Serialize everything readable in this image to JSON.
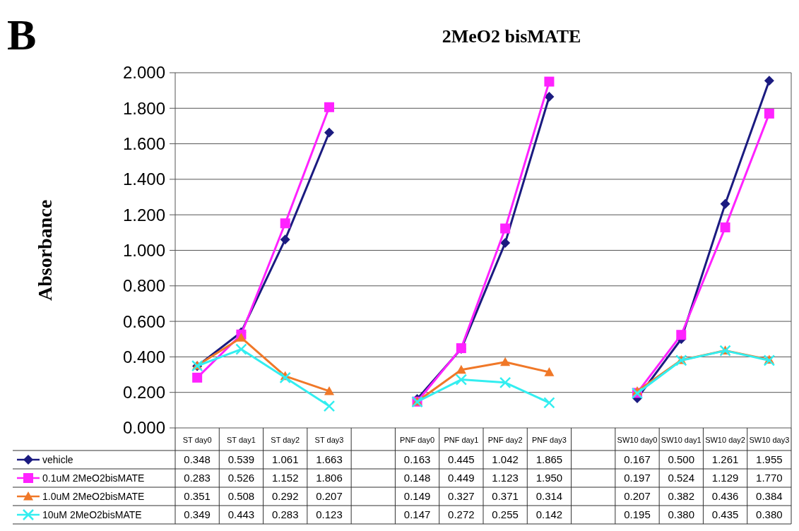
{
  "chart_data": {
    "type": "line",
    "title": "2MeO2 bisMATE",
    "ylabel": "Absorbance",
    "annotations": [
      "B"
    ],
    "categories": [
      "ST day0",
      "ST day1",
      "ST day2",
      "ST day3",
      null,
      "PNF day0",
      "PNF day1",
      "PNF day2",
      "PNF day3",
      null,
      "SW10 day0",
      "SW10 day1",
      "SW10 day2",
      "SW10 day3"
    ],
    "series": [
      {
        "name": "vehicle",
        "color": "#1b1b80",
        "marker": "diamond",
        "values": [
          0.348,
          0.539,
          1.061,
          1.663,
          null,
          0.163,
          0.445,
          1.042,
          1.865,
          null,
          0.167,
          0.5,
          1.261,
          1.955
        ],
        "value_labels": [
          "0.348",
          "0.539",
          "1.061",
          "1.663",
          null,
          "0.163",
          "0.445",
          "1.042",
          "1.865",
          null,
          "0.167",
          "0.500",
          "1.261",
          "1.955"
        ]
      },
      {
        "name": "0.1uM 2MeO2bisMATE",
        "color": "#ff22ff",
        "marker": "square",
        "values": [
          0.283,
          0.526,
          1.152,
          1.806,
          null,
          0.148,
          0.449,
          1.123,
          1.95,
          null,
          0.197,
          0.524,
          1.129,
          1.77
        ],
        "value_labels": [
          "0.283",
          "0.526",
          "1.152",
          "1.806",
          null,
          "0.148",
          "0.449",
          "1.123",
          "1.950",
          null,
          "0.197",
          "0.524",
          "1.129",
          "1.770"
        ]
      },
      {
        "name": "1.0uM 2MeO2bisMATE",
        "color": "#f07828",
        "marker": "triangle",
        "values": [
          0.351,
          0.508,
          0.292,
          0.207,
          null,
          0.149,
          0.327,
          0.371,
          0.314,
          null,
          0.207,
          0.382,
          0.436,
          0.384
        ],
        "value_labels": [
          "0.351",
          "0.508",
          "0.292",
          "0.207",
          null,
          "0.149",
          "0.327",
          "0.371",
          "0.314",
          null,
          "0.207",
          "0.382",
          "0.436",
          "0.384"
        ]
      },
      {
        "name": "10uM 2MeO2bisMATE",
        "color": "#33eef0",
        "marker": "cross",
        "values": [
          0.349,
          0.443,
          0.283,
          0.123,
          null,
          0.147,
          0.272,
          0.255,
          0.142,
          null,
          0.195,
          0.38,
          0.435,
          0.38
        ],
        "value_labels": [
          "0.349",
          "0.443",
          "0.283",
          "0.123",
          null,
          "0.147",
          "0.272",
          "0.255",
          "0.142",
          null,
          "0.195",
          "0.380",
          "0.435",
          "0.380"
        ]
      }
    ],
    "ylim": [
      0,
      2
    ],
    "yticks": [
      {
        "value": 0,
        "label": "0.000"
      },
      {
        "value": 0.2,
        "label": "0.200"
      },
      {
        "value": 0.4,
        "label": "0.400"
      },
      {
        "value": 0.6,
        "label": "0.600"
      },
      {
        "value": 0.8,
        "label": "0.800"
      },
      {
        "value": 1,
        "label": "1.000"
      },
      {
        "value": 1.2,
        "label": "1.200"
      },
      {
        "value": 1.4,
        "label": "1.400"
      },
      {
        "value": 1.6,
        "label": "1.600"
      },
      {
        "value": 1.8,
        "label": "1.800"
      },
      {
        "value": 2,
        "label": "2.000"
      }
    ],
    "grid": "y",
    "legend": "bottom",
    "line_style": "solid"
  }
}
